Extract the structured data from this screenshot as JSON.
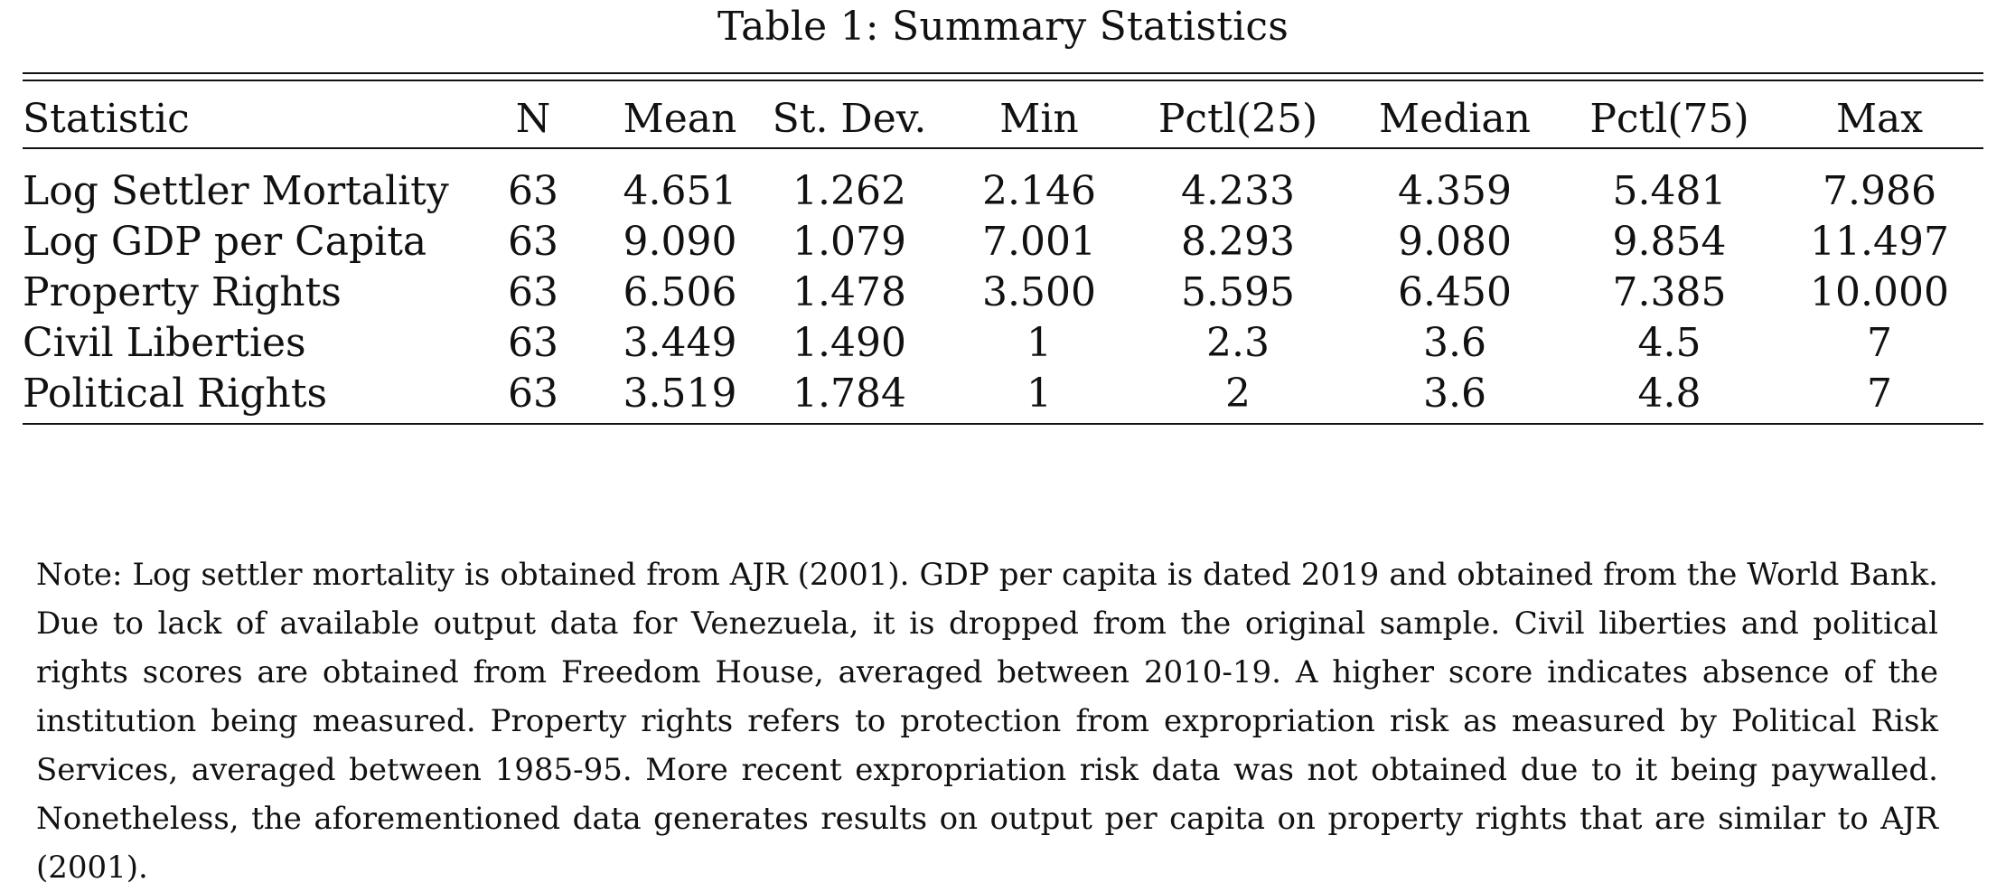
{
  "title": "Table 1: Summary Statistics",
  "columns": [
    "Statistic",
    "N",
    "Mean",
    "St. Dev.",
    "Min",
    "Pctl(25)",
    "Median",
    "Pctl(75)",
    "Max"
  ],
  "rows": [
    [
      "Log Settler Mortality",
      "63",
      "4.651",
      "1.262",
      "2.146",
      "4.233",
      "4.359",
      "5.481",
      "7.986"
    ],
    [
      "Log GDP per Capita",
      "63",
      "9.090",
      "1.079",
      "7.001",
      "8.293",
      "9.080",
      "9.854",
      "11.497"
    ],
    [
      "Property Rights",
      "63",
      "6.506",
      "1.478",
      "3.500",
      "5.595",
      "6.450",
      "7.385",
      "10.000"
    ],
    [
      "Civil Liberties",
      "63",
      "3.449",
      "1.490",
      "1",
      "2.3",
      "3.6",
      "4.5",
      "7"
    ],
    [
      "Political Rights",
      "63",
      "3.519",
      "1.784",
      "1",
      "2",
      "3.6",
      "4.8",
      "7"
    ]
  ],
  "note": "Note: Log settler mortality is obtained from AJR (2001). GDP per capita is dated 2019 and obtained from the World Bank. Due to lack of available output data for Venezuela, it is dropped from the original sample. Civil liberties and political rights scores are obtained from Freedom House, averaged between 2010-19. A higher score indicates absence of the institution being measured. Property rights refers to protection from expropriation risk as measured by Political Risk Services, averaged between 1985-95. More recent expropriation risk data was not obtained due to it being paywalled. Nonetheless, the aforementioned data generates results on output per capita on property rights that are similar to AJR (2001).",
  "chart_data": {
    "type": "table",
    "title": "Table 1: Summary Statistics",
    "columns": [
      "Statistic",
      "N",
      "Mean",
      "St. Dev.",
      "Min",
      "Pctl(25)",
      "Median",
      "Pctl(75)",
      "Max"
    ],
    "rows": [
      [
        "Log Settler Mortality",
        63,
        4.651,
        1.262,
        2.146,
        4.233,
        4.359,
        5.481,
        7.986
      ],
      [
        "Log GDP per Capita",
        63,
        9.09,
        1.079,
        7.001,
        8.293,
        9.08,
        9.854,
        11.497
      ],
      [
        "Property Rights",
        63,
        6.506,
        1.478,
        3.5,
        5.595,
        6.45,
        7.385,
        10.0
      ],
      [
        "Civil Liberties",
        63,
        3.449,
        1.49,
        1,
        2.3,
        3.6,
        4.5,
        7
      ],
      [
        "Political Rights",
        63,
        3.519,
        1.784,
        1,
        2,
        3.6,
        4.8,
        7
      ]
    ]
  }
}
